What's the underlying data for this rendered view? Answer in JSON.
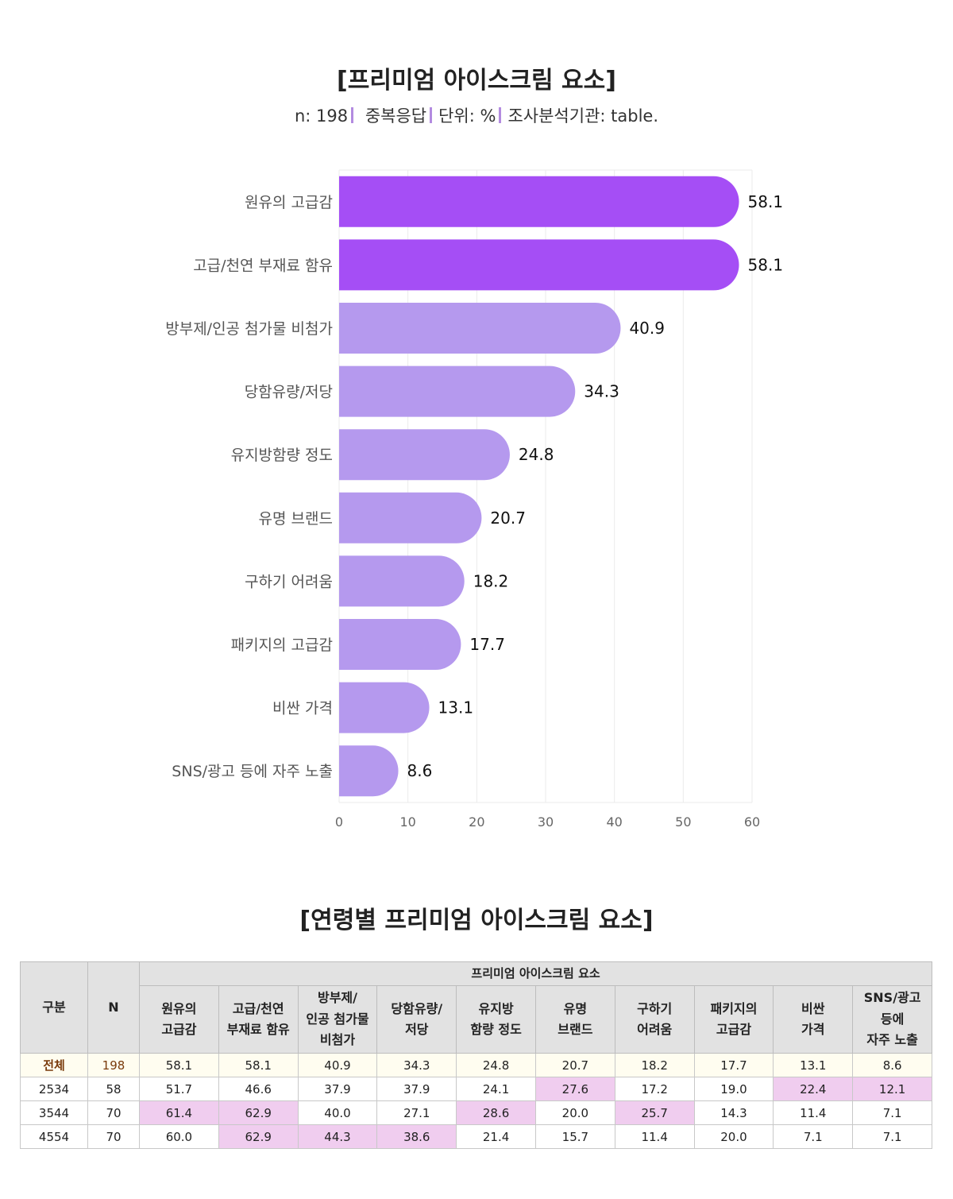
{
  "title": "[프리미엄 아이스크림 요소]",
  "subtitle": {
    "n": "n: 198",
    "multi": "중복응답",
    "unit": "단위: %",
    "source": "조사분석기관: table."
  },
  "colors": {
    "highlight_bar": "#a54ef5",
    "normal_bar": "#b599ee",
    "cell_highlight": "#f0cdef"
  },
  "chart_data": {
    "type": "bar",
    "orientation": "horizontal",
    "categories": [
      "원유의 고급감",
      "고급/천연 부재료 함유",
      "방부제/인공 첨가물 비첨가",
      "당함유량/저당",
      "유지방함량 정도",
      "유명 브랜드",
      "구하기 어려움",
      "패키지의 고급감",
      "비싼 가격",
      "SNS/광고 등에 자주 노출"
    ],
    "values": [
      58.1,
      58.1,
      40.9,
      34.3,
      24.8,
      20.7,
      18.2,
      17.7,
      13.1,
      8.6
    ],
    "value_labels": [
      "58.1",
      "58.1",
      "40.9",
      "34.3",
      "24.8",
      "20.7",
      "18.2",
      "17.7",
      "13.1",
      "8.6"
    ],
    "highlighted": [
      true,
      true,
      false,
      false,
      false,
      false,
      false,
      false,
      false,
      false
    ],
    "xlim": [
      0,
      60
    ],
    "xticks": [
      "0",
      "10",
      "20",
      "30",
      "40",
      "50",
      "60"
    ],
    "grid": true
  },
  "table": {
    "title": "[연령별 프리미엄 아이스크림 요소]",
    "group_header": "프리미엄 아이스크림 요소",
    "col_gubun": "구분",
    "col_n": "N",
    "columns": [
      [
        "원유의",
        "고급감"
      ],
      [
        "고급/천연",
        "부재료 함유"
      ],
      [
        "방부제/",
        "인공 첨가물",
        "비첨가"
      ],
      [
        "당함유량/",
        "저당"
      ],
      [
        "유지방",
        "함량 정도"
      ],
      [
        "유명",
        "브랜드"
      ],
      [
        "구하기",
        "어려움"
      ],
      [
        "패키지의",
        "고급감"
      ],
      [
        "비싼",
        "가격"
      ],
      [
        "SNS/광고",
        "등에",
        "자주 노출"
      ]
    ],
    "rows": [
      {
        "label": "전체",
        "n": "198",
        "values": [
          "58.1",
          "58.1",
          "40.9",
          "34.3",
          "24.8",
          "20.7",
          "18.2",
          "17.7",
          "13.1",
          "8.6"
        ],
        "highlight": []
      },
      {
        "label": "2534",
        "n": "58",
        "values": [
          "51.7",
          "46.6",
          "37.9",
          "37.9",
          "24.1",
          "27.6",
          "17.2",
          "19.0",
          "22.4",
          "12.1"
        ],
        "highlight": [
          5,
          8,
          9
        ]
      },
      {
        "label": "3544",
        "n": "70",
        "values": [
          "61.4",
          "62.9",
          "40.0",
          "27.1",
          "28.6",
          "20.0",
          "25.7",
          "14.3",
          "11.4",
          "7.1"
        ],
        "highlight": [
          0,
          1,
          4,
          6
        ]
      },
      {
        "label": "4554",
        "n": "70",
        "values": [
          "60.0",
          "62.9",
          "44.3",
          "38.6",
          "21.4",
          "15.7",
          "11.4",
          "20.0",
          "7.1",
          "7.1"
        ],
        "highlight": [
          1,
          2,
          3
        ]
      }
    ]
  }
}
